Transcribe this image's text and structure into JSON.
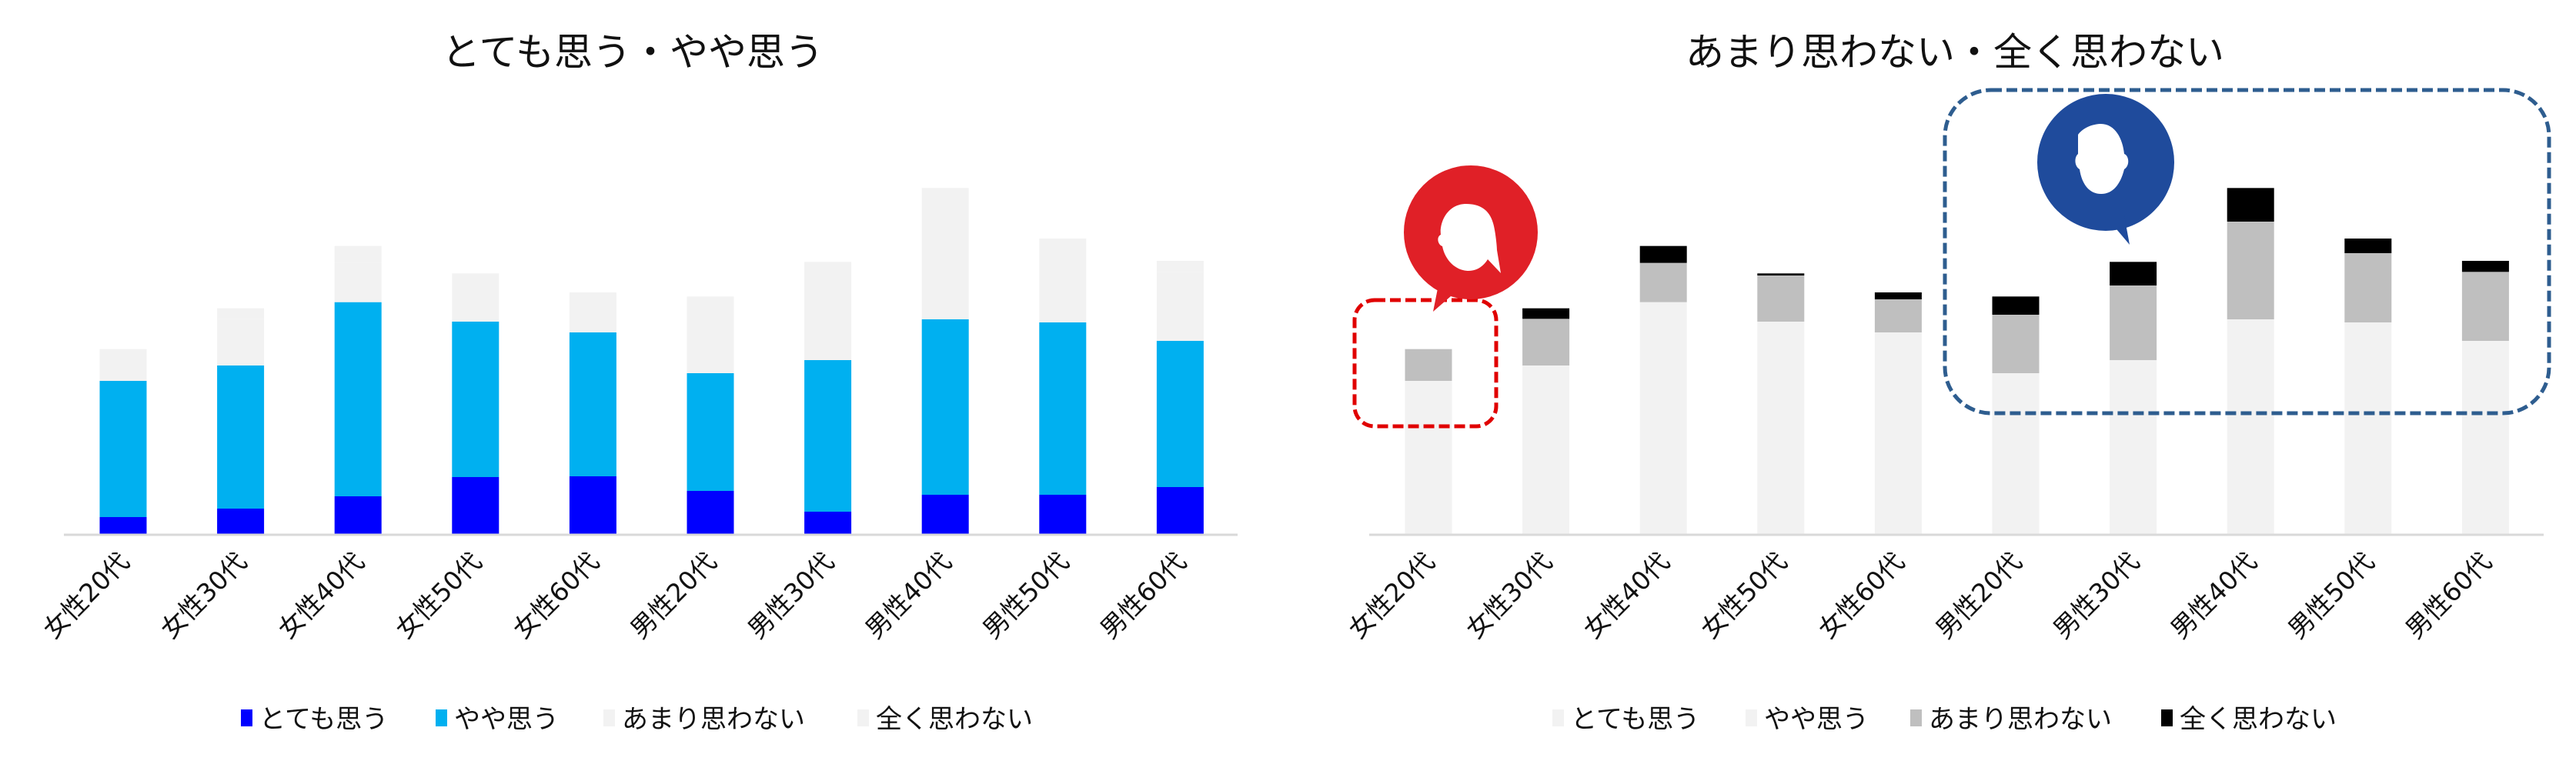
{
  "chart_data": [
    {
      "type": "bar",
      "stacked": true,
      "title": "とても思う・やや思う",
      "categories": [
        "女性20代",
        "女性30代",
        "女性40代",
        "女性50代",
        "女性60代",
        "男性20代",
        "男性30代",
        "男性40代",
        "男性50代",
        "男性60代"
      ],
      "series": [
        {
          "name": "とても思う",
          "color": "#0000FF",
          "values": [
            6.6,
            9.9,
            14.7,
            22.2,
            22.5,
            16.8,
            8.7,
            15.3,
            15.3,
            18.3
          ]
        },
        {
          "name": "やや思う",
          "color": "#00B0F0",
          "values": [
            53.1,
            55.8,
            75.7,
            60.6,
            56.1,
            45.9,
            59.1,
            68.4,
            67.2,
            57.0
          ]
        },
        {
          "name": "あまり思わない",
          "color": "#F2F2F2",
          "values": [
            12.4,
            18.2,
            15.3,
            18.0,
            12.9,
            22.8,
            29.1,
            38.1,
            27.0,
            26.9
          ]
        },
        {
          "name": "全く思わない",
          "color": "#F2F2F2",
          "values": [
            0,
            4.1,
            6.6,
            0.8,
            2.7,
            7.1,
            9.2,
            13.1,
            5.7,
            4.3
          ]
        }
      ],
      "ylim": [
        0,
        150
      ],
      "grid": false,
      "value_axis_shown": false,
      "legend_position": "bottom"
    },
    {
      "type": "bar",
      "stacked": true,
      "title": "あまり思わない・全く思わない",
      "categories": [
        "女性20代",
        "女性30代",
        "女性40代",
        "女性50代",
        "女性60代",
        "男性20代",
        "男性30代",
        "男性40代",
        "男性50代",
        "男性60代"
      ],
      "series": [
        {
          "name": "とても思う",
          "color": "#F2F2F2",
          "values": [
            6.6,
            9.9,
            14.7,
            22.2,
            22.5,
            16.8,
            8.7,
            15.3,
            15.3,
            18.3
          ]
        },
        {
          "name": "やや思う",
          "color": "#F2F2F2",
          "values": [
            53.1,
            55.8,
            75.7,
            60.6,
            56.1,
            45.9,
            59.1,
            68.4,
            67.2,
            57.0
          ]
        },
        {
          "name": "あまり思わない",
          "color": "#BFBFBF",
          "values": [
            12.4,
            18.2,
            15.3,
            18.0,
            12.9,
            22.8,
            29.1,
            38.1,
            27.0,
            26.9
          ]
        },
        {
          "name": "全く思わない",
          "color": "#000000",
          "values": [
            0,
            4.1,
            6.6,
            0.8,
            2.7,
            7.1,
            9.2,
            13.1,
            5.7,
            4.3
          ]
        }
      ],
      "ylim": [
        0,
        150
      ],
      "grid": false,
      "value_axis_shown": false,
      "legend_position": "bottom",
      "annotations": [
        {
          "kind": "dashed-highlight",
          "color": "#E00000",
          "covers": [
            "女性20代"
          ],
          "icon": "female-speech-bubble-icon",
          "icon_color": "#E02027"
        },
        {
          "kind": "dashed-highlight",
          "color": "#2E5D8F",
          "covers": [
            "男性20代",
            "男性30代",
            "男性40代",
            "男性50代",
            "男性60代"
          ],
          "icon": "male-speech-bubble-icon",
          "icon_color": "#1F4B9C"
        }
      ]
    }
  ]
}
